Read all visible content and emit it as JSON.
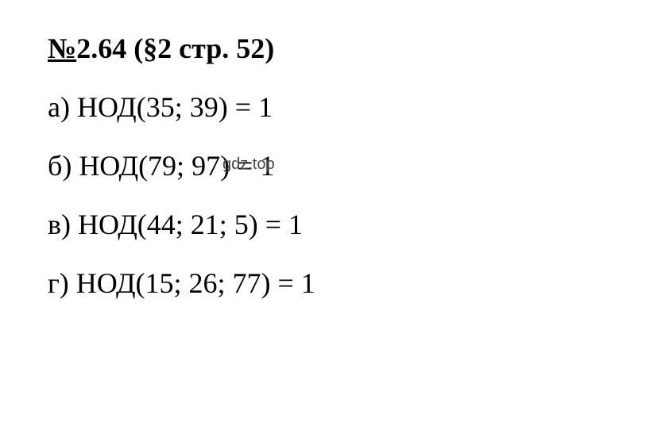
{
  "header": {
    "number_prefix": "№",
    "number": "2.64",
    "section": " (§2 стр. 52)"
  },
  "lines": [
    {
      "letter": "а)",
      "expression": " НОД(35; 39) = 1"
    },
    {
      "letter": "б)",
      "expression": " НОД(79; 97) = 1"
    },
    {
      "letter": "в)",
      "expression": " НОД(44; 21; 5) = 1"
    },
    {
      "letter": "г)",
      "expression": " НОД(15; 26; 77) = 1"
    }
  ],
  "watermark": "gdz.top",
  "colors": {
    "background": "#ffffff",
    "text": "#000000",
    "watermark": "#444444"
  },
  "typography": {
    "main_fontsize": 36,
    "watermark_fontsize": 20,
    "font_family": "Times New Roman"
  }
}
